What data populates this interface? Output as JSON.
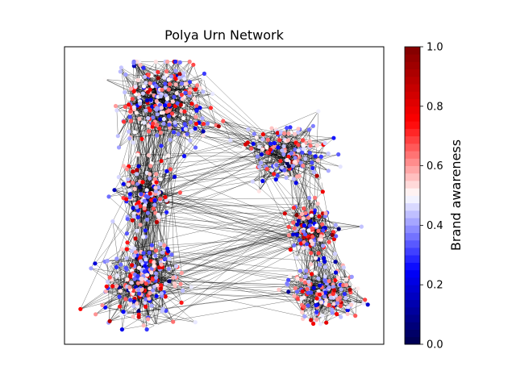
{
  "chart_data": {
    "type": "scatter",
    "title": "Polya Urn Network",
    "xlabel": "",
    "ylabel": "",
    "axes_ticks_visible": false,
    "colorbar": {
      "label": "Brand awareness",
      "colormap": "seismic",
      "range": [
        0.0,
        1.0
      ],
      "tick_labels": [
        "0.0",
        "0.2",
        "0.4",
        "0.6",
        "0.8",
        "1.0"
      ],
      "tick_values": [
        0.0,
        0.2,
        0.4,
        0.6,
        0.8,
        1.0
      ],
      "discrete_levels": 40
    },
    "edge_color": "#000000",
    "clusters": [
      {
        "center": [
          0.3,
          0.82
        ],
        "spread": [
          0.09,
          0.1
        ],
        "count": 260
      },
      {
        "center": [
          0.25,
          0.5
        ],
        "spread": [
          0.06,
          0.07
        ],
        "count": 120
      },
      {
        "center": [
          0.24,
          0.22
        ],
        "spread": [
          0.08,
          0.09
        ],
        "count": 230
      },
      {
        "center": [
          0.7,
          0.64
        ],
        "spread": [
          0.08,
          0.07
        ],
        "count": 150
      },
      {
        "center": [
          0.77,
          0.38
        ],
        "spread": [
          0.06,
          0.06
        ],
        "count": 120
      },
      {
        "center": [
          0.81,
          0.17
        ],
        "spread": [
          0.08,
          0.06
        ],
        "count": 150
      }
    ],
    "series": [
      {
        "values_distribution": "brand awareness 0.0 to 1.0, mostly 0.3 to 0.7"
      }
    ]
  }
}
